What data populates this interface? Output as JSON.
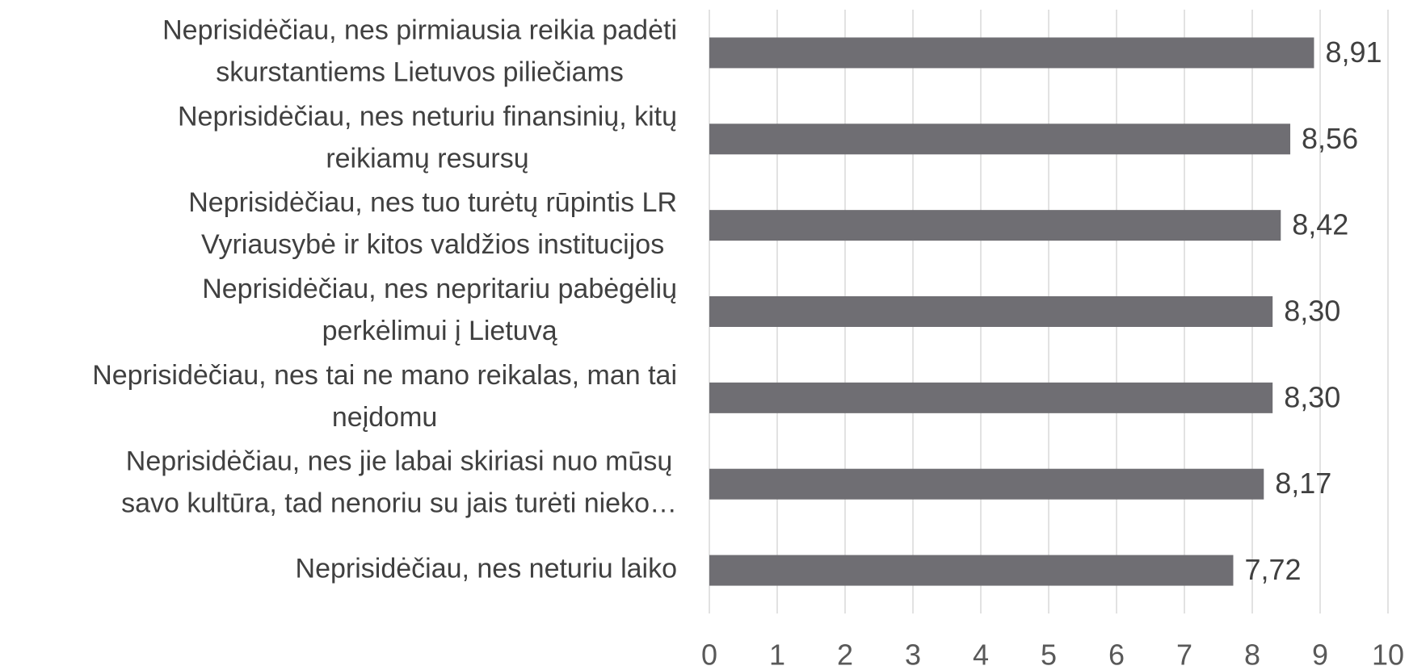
{
  "chart_data": {
    "type": "bar",
    "orientation": "horizontal",
    "categories": [
      [
        "Neprisidėčiau, nes pirmiausia reikia padėti",
        "skurstantiems Lietuvos piliečiams"
      ],
      [
        "Neprisidėčiau, nes neturiu finansinių, kitų",
        "reikiamų resursų"
      ],
      [
        "Neprisidėčiau, nes tuo turėtų rūpintis LR",
        "Vyriausybė ir kitos valdžios institucijos"
      ],
      [
        "Neprisidėčiau, nes nepritariu pabėgėlių",
        "perkėlimui į Lietuvą"
      ],
      [
        "Neprisidėčiau, nes tai ne mano reikalas, man tai",
        "neįdomu"
      ],
      [
        "Neprisidėčiau, nes jie labai skiriasi nuo mūsų",
        "savo kultūra, tad nenoriu su jais turėti nieko…"
      ],
      [
        "Neprisidėčiau, nes neturiu laiko"
      ]
    ],
    "values": [
      8.91,
      8.56,
      8.42,
      8.3,
      8.3,
      8.17,
      7.72
    ],
    "value_labels": [
      "8,91",
      "8,56",
      "8,42",
      "8,30",
      "8,30",
      "8,17",
      "7,72"
    ],
    "color": "#6f6e73",
    "xlim": [
      0,
      10
    ],
    "xticks": [
      0,
      1,
      2,
      3,
      4,
      5,
      6,
      7,
      8,
      9,
      10
    ],
    "grid": true
  }
}
